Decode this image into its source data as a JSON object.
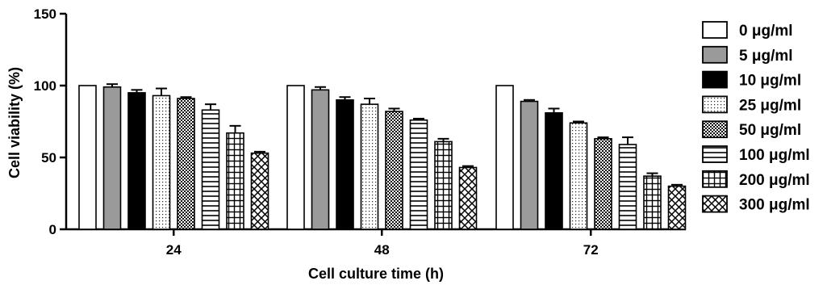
{
  "chart_data": {
    "type": "bar",
    "title": "",
    "xlabel": "Cell culture time (h)",
    "ylabel": "Cell viability (%)",
    "ylim": [
      0,
      150
    ],
    "yticks": [
      "0",
      "50",
      "100",
      "150"
    ],
    "categories": [
      "24",
      "48",
      "72"
    ],
    "legend_position": "right",
    "series": [
      {
        "name": "0 μg/ml",
        "pattern": "white",
        "values": [
          100,
          100,
          100
        ],
        "errors": [
          0,
          0,
          0
        ]
      },
      {
        "name": "5 μg/ml",
        "pattern": "gray",
        "values": [
          99,
          97,
          89
        ],
        "errors": [
          2,
          2,
          1
        ]
      },
      {
        "name": "10 μg/ml",
        "pattern": "black",
        "values": [
          95,
          90,
          81
        ],
        "errors": [
          2,
          2,
          3
        ]
      },
      {
        "name": "25 μg/ml",
        "pattern": "dots",
        "values": [
          93,
          87,
          74
        ],
        "errors": [
          5,
          4,
          1
        ]
      },
      {
        "name": "50 μg/ml",
        "pattern": "crosshatch",
        "values": [
          91,
          82,
          63
        ],
        "errors": [
          1,
          2,
          1
        ]
      },
      {
        "name": "100 μg/ml",
        "pattern": "horizontal",
        "values": [
          83,
          76,
          59
        ],
        "errors": [
          4,
          1,
          5
        ]
      },
      {
        "name": "200 μg/ml",
        "pattern": "grid",
        "values": [
          67,
          61,
          37
        ],
        "errors": [
          5,
          2,
          2
        ]
      },
      {
        "name": "300 μg/ml",
        "pattern": "diagonal",
        "values": [
          53,
          43,
          30
        ],
        "errors": [
          1,
          1,
          1
        ]
      }
    ]
  }
}
